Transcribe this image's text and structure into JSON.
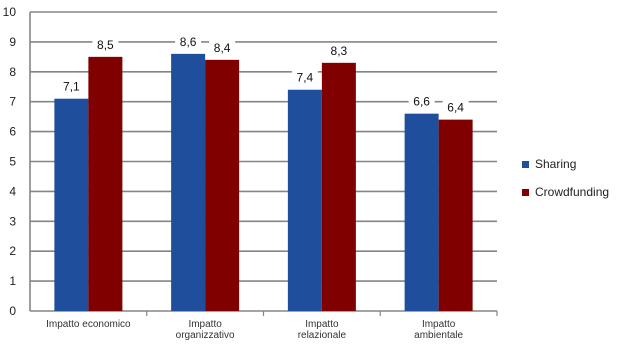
{
  "chart_data": {
    "type": "bar",
    "categories": [
      "Impatto economico",
      "Impatto organizzativo",
      "Impatto relazionale",
      "Impatto ambientale"
    ],
    "category_lines": [
      [
        "Impatto economico"
      ],
      [
        "Impatto",
        "organizzativo"
      ],
      [
        "Impatto",
        "relazionale"
      ],
      [
        "Impatto",
        "ambientale"
      ]
    ],
    "series": [
      {
        "name": "Sharing",
        "values": [
          7.1,
          8.6,
          7.4,
          6.6
        ],
        "labels": [
          "7,1",
          "8,6",
          "7,4",
          "6,6"
        ],
        "color": "#1f4e9c"
      },
      {
        "name": "Crowdfunding",
        "values": [
          8.5,
          8.4,
          8.3,
          6.4
        ],
        "labels": [
          "8,5",
          "8,4",
          "8,3",
          "6,4"
        ],
        "color": "#800000"
      }
    ],
    "ylim": [
      0,
      10
    ],
    "yticks": [
      "0",
      "1",
      "2",
      "3",
      "4",
      "5",
      "6",
      "7",
      "8",
      "9",
      "10"
    ],
    "grid": true,
    "legend_position": "right"
  }
}
